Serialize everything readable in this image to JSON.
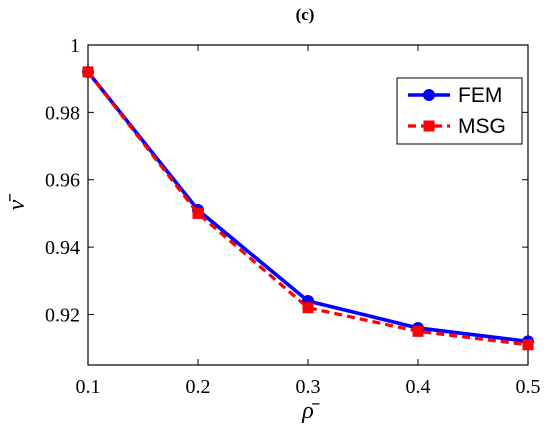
{
  "chart_data": {
    "type": "line",
    "title": "(c)",
    "xlabel": "ρ̄",
    "ylabel": "ν̄",
    "x": [
      0.1,
      0.2,
      0.3,
      0.4,
      0.5
    ],
    "xlim": [
      0.1,
      0.5
    ],
    "ylim": [
      0.905,
      1.0
    ],
    "xticks": [
      0.1,
      0.2,
      0.3,
      0.4,
      0.5
    ],
    "xtick_labels": [
      "0.1",
      "0.2",
      "0.3",
      "0.4",
      "0.5"
    ],
    "yticks": [
      0.92,
      0.94,
      0.96,
      0.98,
      1.0
    ],
    "ytick_labels": [
      "0.92",
      "0.94",
      "0.96",
      "0.98",
      "1"
    ],
    "grid": false,
    "legend_position": "top-right",
    "series": [
      {
        "name": "FEM",
        "values": [
          0.992,
          0.951,
          0.924,
          0.916,
          0.912
        ],
        "color": "#0000ff",
        "line_style": "solid",
        "marker": "circle"
      },
      {
        "name": "MSG",
        "values": [
          0.992,
          0.95,
          0.922,
          0.915,
          0.911
        ],
        "color": "#ff0000",
        "line_style": "dashed",
        "marker": "square"
      }
    ]
  }
}
